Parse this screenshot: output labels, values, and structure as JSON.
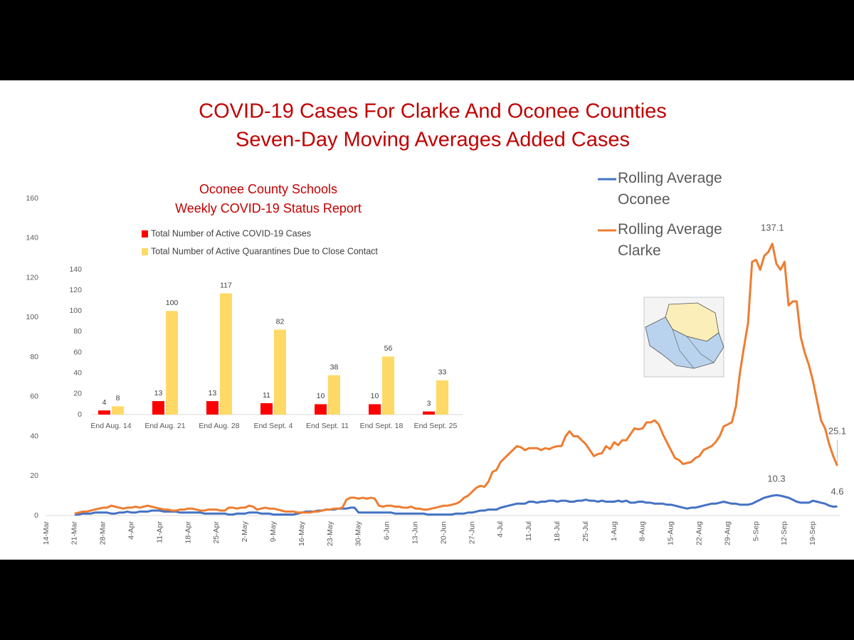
{
  "chart_data": [
    {
      "type": "line",
      "title": "COVID-19 Cases For Clarke And Oconee Counties",
      "subtitle": "Seven-Day Moving Averages Added Cases",
      "categories": [
        "14-Mar",
        null,
        null,
        null,
        null,
        null,
        null,
        "21-Mar",
        null,
        null,
        null,
        null,
        null,
        null,
        "28-Mar",
        null,
        null,
        null,
        null,
        null,
        null,
        "4-Apr",
        null,
        null,
        null,
        null,
        null,
        null,
        "11-Apr",
        null,
        null,
        null,
        null,
        null,
        null,
        "18-Apr",
        null,
        null,
        null,
        null,
        null,
        null,
        "25-Apr",
        null,
        null,
        null,
        null,
        null,
        null,
        "2-May",
        null,
        null,
        null,
        null,
        null,
        null,
        "9-May",
        null,
        null,
        null,
        null,
        null,
        null,
        "16-May",
        null,
        null,
        null,
        null,
        null,
        null,
        "23-May",
        null,
        null,
        null,
        null,
        null,
        null,
        "30-May",
        null,
        null,
        null,
        null,
        null,
        null,
        "6-Jun",
        null,
        null,
        null,
        null,
        null,
        null,
        "13-Jun",
        null,
        null,
        null,
        null,
        null,
        null,
        "20-Jun",
        null,
        null,
        null,
        null,
        null,
        null,
        "27-Jun",
        null,
        null,
        null,
        null,
        null,
        null,
        "4-Jul",
        null,
        null,
        null,
        null,
        null,
        null,
        "11-Jul",
        null,
        null,
        null,
        null,
        null,
        null,
        "18-Jul",
        null,
        null,
        null,
        null,
        null,
        null,
        "25-Jul",
        null,
        null,
        null,
        null,
        null,
        null,
        "1-Aug",
        null,
        null,
        null,
        null,
        null,
        null,
        "8-Aug",
        null,
        null,
        null,
        null,
        null,
        null,
        "15-Aug",
        null,
        null,
        null,
        null,
        null,
        null,
        "22-Aug",
        null,
        null,
        null,
        null,
        null,
        null,
        "29-Aug",
        null,
        null,
        null,
        null,
        null,
        null,
        "5-Sep",
        null,
        null,
        null,
        null,
        null,
        null,
        "12-Sep",
        null,
        null,
        null,
        null,
        null,
        null,
        "19-Sep",
        null,
        null,
        null,
        null,
        null,
        null
      ],
      "series": [
        {
          "name": "Rolling Average Oconee",
          "color": "#4472c4",
          "values": [
            null,
            null,
            null,
            null,
            null,
            null,
            null,
            0.5,
            0.5,
            1,
            1,
            1,
            1.5,
            1.5,
            1.5,
            1.5,
            1,
            1,
            1.5,
            1.5,
            2,
            1.5,
            1.5,
            2,
            2,
            2,
            2.5,
            2.5,
            2.5,
            2,
            2,
            2,
            2,
            1.5,
            1.5,
            1.5,
            1.5,
            1.5,
            1.5,
            1,
            1,
            1,
            1,
            1,
            1,
            0.5,
            0.5,
            1,
            1,
            1,
            1.5,
            1.5,
            1.5,
            1,
            1,
            1,
            0.5,
            0.5,
            0.5,
            0.5,
            0.5,
            0.5,
            1,
            1.5,
            2,
            2,
            2,
            2.5,
            2.5,
            3,
            3,
            3,
            3.5,
            3.5,
            3.5,
            4,
            4,
            1.5,
            1.5,
            1.5,
            1.5,
            1.5,
            1.5,
            1.5,
            1.5,
            1.5,
            1,
            1,
            1,
            1,
            1,
            1,
            1,
            1,
            0.5,
            0.5,
            0.5,
            0.5,
            0.5,
            0.5,
            0.5,
            1,
            1,
            1,
            1.5,
            1.5,
            2,
            2.5,
            2.5,
            3,
            3,
            3,
            4,
            4.5,
            5,
            5.5,
            6,
            6,
            6,
            7,
            7,
            6.5,
            7,
            7,
            7.5,
            7.5,
            7,
            7.5,
            7.5,
            7,
            7,
            7.5,
            7.5,
            8,
            7.5,
            7.5,
            7,
            7.5,
            7,
            7,
            7,
            7.5,
            7,
            7.5,
            6.5,
            6.5,
            7,
            7,
            6.5,
            6.5,
            6,
            6,
            6,
            5.5,
            5.5,
            5,
            4.5,
            4,
            3.5,
            4,
            4,
            4.5,
            5,
            5.5,
            6,
            6,
            6.5,
            7,
            6.5,
            6,
            6,
            5.5,
            5.5,
            5.5,
            6,
            7,
            8,
            9,
            9.5,
            10,
            10.3,
            10,
            9.5,
            9,
            8,
            7,
            6.5,
            6.5,
            6.5,
            7.5,
            7,
            6.5,
            6,
            5,
            4.5,
            4.6
          ]
        },
        {
          "name": "Rolling Average Clarke",
          "color": "#ed7d31",
          "values": [
            null,
            null,
            null,
            null,
            null,
            null,
            null,
            1,
            1.5,
            2,
            2,
            2.5,
            3,
            3.5,
            4,
            4,
            5,
            4.5,
            4,
            3.5,
            4,
            4,
            4.5,
            4,
            4.5,
            5,
            4.5,
            4,
            3.5,
            3,
            3,
            2.5,
            2.5,
            3,
            3,
            3.5,
            3.5,
            3,
            2.5,
            2.5,
            3,
            3,
            3,
            2.5,
            2.5,
            4,
            4,
            3.5,
            4,
            4,
            5,
            4.5,
            3,
            3.5,
            4,
            3.5,
            3.5,
            3,
            2.5,
            2,
            2,
            2,
            1.5,
            1.5,
            1.5,
            1.5,
            2,
            2,
            2.5,
            3,
            3,
            3.5,
            3.5,
            4,
            8,
            9,
            9,
            8.5,
            9,
            8.5,
            9,
            8.5,
            5,
            4.5,
            5,
            5,
            4.5,
            4.5,
            4,
            4,
            4.5,
            3.5,
            3.5,
            3,
            3,
            3.5,
            4,
            4.5,
            5,
            5,
            5.5,
            6,
            7,
            9,
            10,
            12,
            14,
            15,
            14.5,
            17,
            22,
            23,
            27,
            29,
            31,
            33,
            35,
            34.5,
            33,
            34,
            34,
            34,
            33,
            34,
            33.5,
            34.5,
            35,
            35,
            40,
            42.5,
            40,
            40,
            38,
            36,
            33,
            30,
            31,
            31.5,
            35,
            33.5,
            37,
            35.5,
            38,
            38,
            41,
            44,
            43.5,
            44,
            47,
            47,
            48,
            46,
            41,
            37,
            33,
            29,
            28,
            26,
            26.5,
            27,
            29,
            30,
            33,
            34,
            35,
            37,
            40,
            45,
            46,
            47,
            55,
            72,
            85,
            97,
            128,
            129,
            124,
            131,
            133,
            137.1,
            127,
            124,
            128,
            106,
            108,
            108,
            90,
            82,
            76,
            68,
            58,
            48,
            44,
            36,
            30,
            25.1
          ]
        }
      ],
      "ylim": [
        0,
        160
      ],
      "yticks": [
        0,
        20,
        40,
        60,
        80,
        100,
        120,
        140,
        160
      ]
    },
    {
      "type": "bar",
      "title": "Oconee County Schools",
      "subtitle": "Weekly COVID-19 Status Report",
      "categories": [
        "End Aug. 14",
        "End Aug. 21",
        "End Aug. 28",
        "End Sept. 4",
        "End Sept. 11",
        "End Sept. 18",
        "End Sept. 25"
      ],
      "series": [
        {
          "name": "Total Number of Active COVID-19 Cases",
          "color": "#ff0000",
          "values": [
            4,
            13,
            13,
            11,
            10,
            10,
            3
          ]
        },
        {
          "name": "Total Number of Active Quarantines Due to Close Contact",
          "color": "#ffd966",
          "values": [
            8,
            100,
            117,
            82,
            38,
            56,
            33
          ]
        }
      ],
      "ylim": [
        0,
        140
      ],
      "yticks": [
        0,
        20,
        40,
        60,
        80,
        100,
        120,
        140
      ]
    }
  ]
}
